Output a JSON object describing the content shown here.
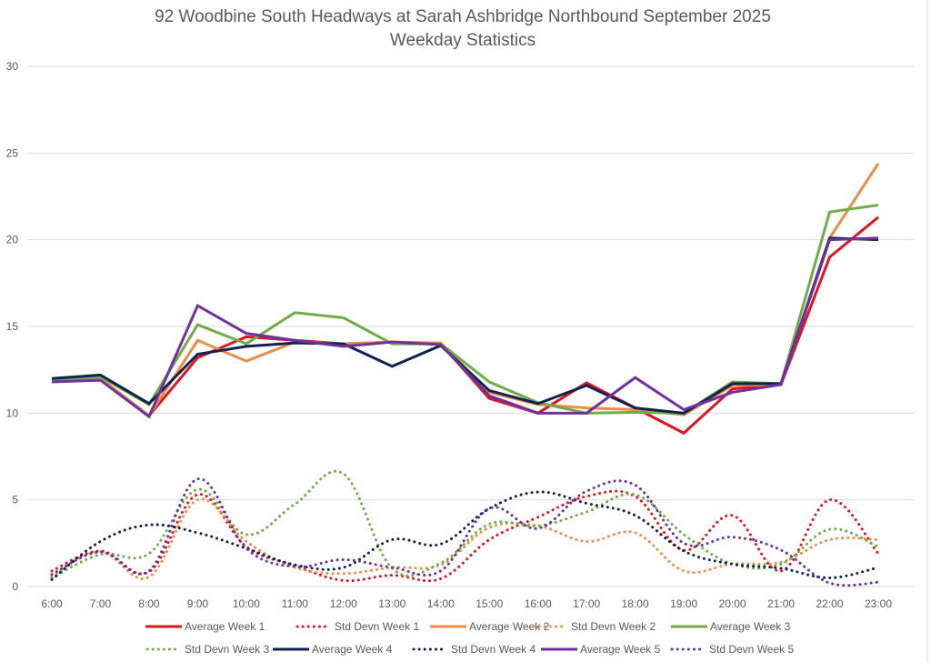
{
  "chart_data": {
    "type": "line",
    "title": "92 Woodbine South Headways at Sarah Ashbridge Northbound September 2025",
    "subtitle": "Weekday Statistics",
    "xlabel": "",
    "ylabel": "",
    "ylim": [
      0,
      30
    ],
    "yticks": [
      0,
      5,
      10,
      15,
      20,
      25,
      30
    ],
    "grid": true,
    "legend_position": "bottom",
    "categories": [
      "6:00",
      "7:00",
      "8:00",
      "9:00",
      "10:00",
      "11:00",
      "12:00",
      "13:00",
      "14:00",
      "15:00",
      "16:00",
      "17:00",
      "18:00",
      "19:00",
      "20:00",
      "21:00",
      "22:00",
      "23:00"
    ],
    "series": [
      {
        "name": "Average Week 1",
        "color": "#e0141e",
        "style": "solid",
        "values": [
          11.9,
          12.0,
          9.85,
          13.2,
          14.4,
          14.2,
          14.0,
          14.1,
          14.0,
          10.85,
          10.0,
          11.75,
          10.3,
          8.85,
          11.4,
          11.65,
          19.0,
          21.3
        ]
      },
      {
        "name": "Std Devn Week 1",
        "color": "#e0141e",
        "style": "dotted",
        "values": [
          0.9,
          2.05,
          0.85,
          5.3,
          2.3,
          1.2,
          0.35,
          0.65,
          0.45,
          2.7,
          4.0,
          5.2,
          5.2,
          2.1,
          4.1,
          0.9,
          5.0,
          1.9
        ]
      },
      {
        "name": "Average Week 2",
        "color": "#ed8c47",
        "style": "solid",
        "values": [
          11.9,
          12.0,
          9.85,
          14.2,
          13.0,
          14.1,
          14.0,
          14.1,
          14.05,
          11.2,
          10.5,
          10.3,
          10.2,
          9.9,
          11.6,
          11.65,
          20.1,
          24.4
        ]
      },
      {
        "name": "Std Devn Week 2",
        "color": "#ed8c47",
        "style": "dotted",
        "values": [
          0.6,
          2.0,
          0.55,
          5.0,
          2.6,
          1.1,
          0.75,
          1.1,
          1.25,
          3.4,
          3.5,
          2.6,
          3.1,
          0.9,
          1.3,
          1.4,
          2.7,
          2.7
        ]
      },
      {
        "name": "Average Week 3",
        "color": "#70ad47",
        "style": "solid",
        "values": [
          11.9,
          12.1,
          10.5,
          15.1,
          14.0,
          15.8,
          15.5,
          14.0,
          14.0,
          11.8,
          10.6,
          10.0,
          10.05,
          10.0,
          11.8,
          11.7,
          21.6,
          22.0
        ]
      },
      {
        "name": "Std Devn Week 3",
        "color": "#70ad47",
        "style": "dotted",
        "values": [
          0.5,
          1.85,
          1.9,
          5.6,
          3.0,
          4.75,
          6.5,
          1.05,
          1.35,
          3.6,
          3.5,
          4.3,
          5.3,
          3.0,
          1.3,
          1.3,
          3.3,
          2.3
        ]
      },
      {
        "name": "Average Week 4",
        "color": "#0e2350",
        "style": "solid",
        "values": [
          12.0,
          12.2,
          10.55,
          13.4,
          13.85,
          14.05,
          14.0,
          12.7,
          13.9,
          11.3,
          10.55,
          11.6,
          10.3,
          10.0,
          11.7,
          11.7,
          20.1,
          20.0
        ]
      },
      {
        "name": "Std Devn Week 4",
        "color": "#0e2350",
        "style": "dotted",
        "values": [
          0.4,
          2.6,
          3.55,
          3.1,
          2.2,
          1.25,
          1.1,
          2.7,
          2.45,
          4.5,
          5.45,
          4.8,
          4.1,
          2.05,
          1.3,
          1.05,
          0.5,
          1.1
        ]
      },
      {
        "name": "Average Week 5",
        "color": "#7030a0",
        "style": "solid",
        "values": [
          11.8,
          11.9,
          9.8,
          16.2,
          14.6,
          14.2,
          13.85,
          14.1,
          13.95,
          11.0,
          10.0,
          10.0,
          12.05,
          10.2,
          11.2,
          11.65,
          20.0,
          20.1
        ]
      },
      {
        "name": "Std Devn Week 5",
        "color": "#7030a0",
        "style": "dotted",
        "values": [
          0.7,
          2.0,
          0.9,
          6.2,
          2.2,
          1.15,
          1.55,
          1.1,
          0.9,
          4.5,
          3.35,
          5.5,
          5.85,
          2.5,
          2.85,
          2.1,
          0.2,
          0.25
        ]
      }
    ]
  }
}
